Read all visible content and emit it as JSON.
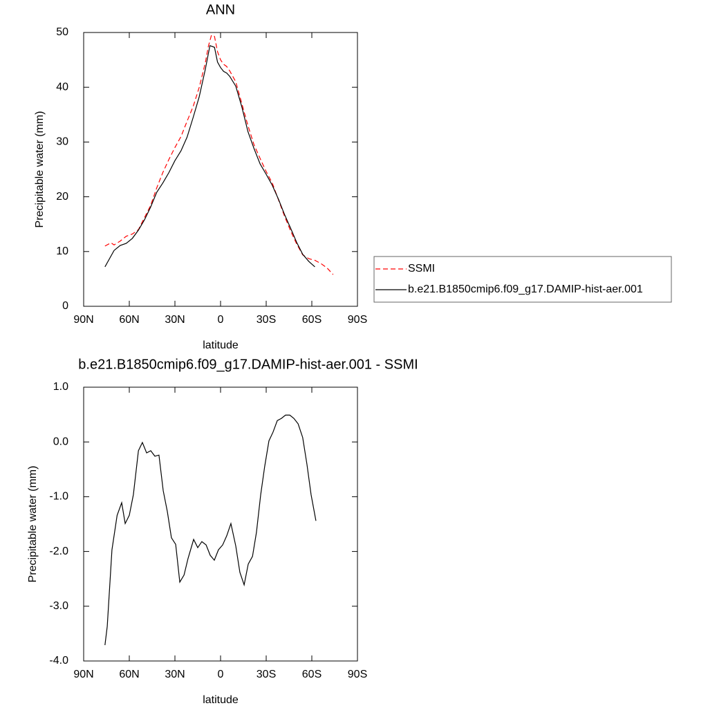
{
  "chart_data": [
    {
      "type": "line",
      "title": "ANN",
      "xlabel": "latitude",
      "ylabel": "Precipitable water (mm)",
      "xlim": [
        90,
        -90
      ],
      "xticks": [
        {
          "value": 90,
          "label": "90N"
        },
        {
          "value": 60,
          "label": "60N"
        },
        {
          "value": 30,
          "label": "30N"
        },
        0,
        {
          "value": -30,
          "label": "30S"
        },
        {
          "value": -60,
          "label": "60S"
        },
        {
          "value": -90,
          "label": "90S"
        }
      ],
      "ylim": [
        0,
        50
      ],
      "yticks": [
        0,
        10,
        20,
        30,
        40,
        50
      ],
      "legend": "right",
      "series": [
        {
          "name": "SSMI",
          "color": "#ff0000",
          "dashed": true,
          "x": [
            76,
            72,
            70,
            66,
            62,
            58,
            54,
            50,
            46,
            42,
            38,
            34,
            30,
            26,
            22,
            18,
            14,
            10,
            8,
            6,
            4,
            2,
            0,
            -2,
            -4,
            -6,
            -10,
            -14,
            -18,
            -22,
            -26,
            -30,
            -34,
            -38,
            -42,
            -46,
            -50,
            -54,
            -58,
            -62,
            -66,
            -70,
            -74
          ],
          "values": [
            11.0,
            11.6,
            11.2,
            11.9,
            12.8,
            13.2,
            14.0,
            16.2,
            18.4,
            21.6,
            24.4,
            26.8,
            29.0,
            31.0,
            33.8,
            36.5,
            40.0,
            44.5,
            47.5,
            49.5,
            49.3,
            46.5,
            45.0,
            44.2,
            43.8,
            43.0,
            41.0,
            37.0,
            33.0,
            29.5,
            27.0,
            24.6,
            22.5,
            19.5,
            16.5,
            13.8,
            11.4,
            9.4,
            8.7,
            8.4,
            7.8,
            7.0,
            5.8
          ]
        },
        {
          "name": "b.e21.B1850cmip6.f09_g17.DAMIP-hist-aer.001",
          "color": "#000000",
          "dashed": false,
          "x": [
            76,
            70,
            66,
            62,
            58,
            54,
            50,
            46,
            42,
            38,
            34,
            30,
            26,
            22,
            18,
            14,
            10,
            7,
            4,
            2,
            0,
            -2,
            -4,
            -6,
            -10,
            -14,
            -18,
            -22,
            -26,
            -30,
            -34,
            -38,
            -42,
            -46,
            -50,
            -54,
            -58,
            -62
          ],
          "values": [
            7.2,
            10.2,
            11.1,
            11.5,
            12.4,
            13.9,
            15.8,
            18.1,
            20.8,
            22.5,
            24.4,
            26.6,
            28.4,
            30.9,
            34.5,
            38.3,
            43.3,
            47.6,
            47.3,
            44.6,
            43.6,
            42.9,
            42.6,
            42.0,
            40.2,
            36.4,
            31.9,
            28.8,
            26.0,
            24.1,
            22.1,
            19.6,
            16.8,
            14.3,
            11.7,
            9.5,
            8.2,
            7.2
          ]
        }
      ]
    },
    {
      "type": "line",
      "title": "b.e21.B1850cmip6.f09_g17.DAMIP-hist-aer.001 - SSMI",
      "xlabel": "latitude",
      "ylabel": "Precipitable water (mm)",
      "xlim": [
        90,
        -90
      ],
      "xticks": [
        {
          "value": 90,
          "label": "90N"
        },
        {
          "value": 60,
          "label": "60N"
        },
        {
          "value": 30,
          "label": "30N"
        },
        0,
        {
          "value": -30,
          "label": "30S"
        },
        {
          "value": -60,
          "label": "60S"
        },
        {
          "value": -90,
          "label": "90S"
        }
      ],
      "ylim": [
        -4,
        1
      ],
      "yticks": [
        {
          "value": 1,
          "label": "1.0"
        },
        {
          "value": 0,
          "label": "0.0"
        },
        {
          "value": -1,
          "label": "-1.0"
        },
        {
          "value": -2,
          "label": "-2.0"
        },
        {
          "value": -3,
          "label": "-3.0"
        },
        {
          "value": -4,
          "label": "-4.0"
        }
      ],
      "series": [
        {
          "color": "#000000",
          "dashed": false,
          "x": [
            76,
            74.5,
            71.4,
            68,
            65,
            62.7,
            60,
            57.3,
            54,
            51.4,
            48.6,
            45.9,
            43.2,
            40.5,
            37.7,
            35,
            32.3,
            29.5,
            26.8,
            24,
            21.4,
            17.7,
            15,
            12.3,
            9.5,
            6.8,
            4.1,
            1.4,
            -1.4,
            -4.1,
            -6.8,
            -10,
            -12.7,
            -15.5,
            -18.2,
            -21,
            -23.6,
            -26.4,
            -29,
            -31.8,
            -34.5,
            -37.3,
            -40,
            -42.7,
            -45.5,
            -48.2,
            -51,
            -54,
            -56.8,
            -59.5,
            -62.7
          ],
          "values": [
            -3.71,
            -3.37,
            -1.97,
            -1.34,
            -1.11,
            -1.49,
            -1.34,
            -0.96,
            -0.16,
            -0.01,
            -0.2,
            -0.16,
            -0.26,
            -0.24,
            -0.89,
            -1.27,
            -1.75,
            -1.87,
            -2.56,
            -2.43,
            -2.13,
            -1.78,
            -1.93,
            -1.82,
            -1.88,
            -2.07,
            -2.16,
            -1.97,
            -1.88,
            -1.71,
            -1.49,
            -1.9,
            -2.38,
            -2.61,
            -2.23,
            -2.09,
            -1.65,
            -0.96,
            -0.45,
            0.02,
            0.18,
            0.39,
            0.43,
            0.49,
            0.49,
            0.43,
            0.33,
            0.08,
            -0.41,
            -0.96,
            -1.44
          ]
        }
      ]
    }
  ]
}
